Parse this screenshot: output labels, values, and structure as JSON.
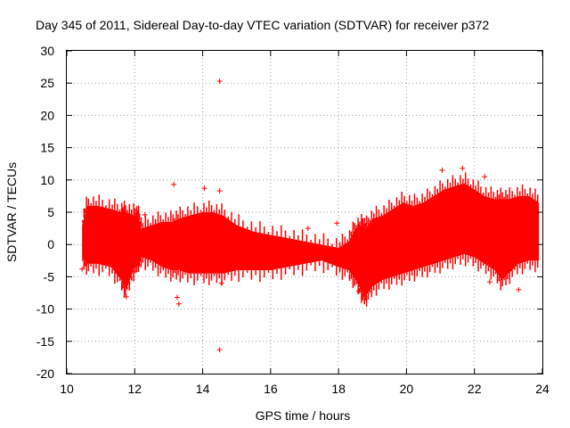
{
  "chart_data": {
    "type": "scatter",
    "title": "Day 345 of 2011, Sidereal Day-to-day VTEC variation (SDTVAR) for receiver p372",
    "xlabel": "GPS time / hours",
    "ylabel": "SDTVAR / TECUs",
    "xlim": [
      10,
      24
    ],
    "ylim": [
      -20,
      30
    ],
    "xticks": [
      "10",
      "12",
      "14",
      "16",
      "18",
      "20",
      "22",
      "24"
    ],
    "yticks": [
      "-20",
      "-15",
      "-10",
      "-5",
      "0",
      "5",
      "10",
      "15",
      "20",
      "25",
      "30"
    ],
    "grid": true,
    "marker": "+",
    "color": "#ff0000",
    "envelope": {
      "x": [
        10.45,
        10.6,
        10.9,
        11.3,
        11.6,
        11.75,
        12.0,
        12.1,
        12.2,
        12.5,
        12.8,
        13.1,
        13.3,
        13.6,
        14.0,
        14.3,
        14.6,
        15.0,
        15.5,
        16.0,
        16.5,
        17.0,
        17.5,
        18.0,
        18.3,
        18.5,
        18.7,
        18.8,
        19.0,
        19.3,
        19.6,
        19.9,
        20.2,
        20.5,
        20.8,
        21.1,
        21.4,
        21.7,
        22.0,
        22.3,
        22.6,
        22.8,
        23.0,
        23.3,
        23.6,
        23.9
      ],
      "upper": [
        3.0,
        6.0,
        6.0,
        5.5,
        5.0,
        5.0,
        4.5,
        4.5,
        2.5,
        3.0,
        3.5,
        3.5,
        4.0,
        4.5,
        5.0,
        5.0,
        4.5,
        3.0,
        2.0,
        1.5,
        1.0,
        0.5,
        0.0,
        -0.5,
        0.5,
        2.5,
        3.0,
        2.5,
        4.0,
        4.5,
        5.5,
        6.5,
        6.0,
        6.5,
        7.5,
        8.5,
        9.0,
        9.5,
        8.5,
        7.5,
        7.0,
        7.0,
        7.0,
        7.5,
        7.5,
        6.5
      ],
      "lower": [
        -2.0,
        -3.0,
        -3.0,
        -3.5,
        -5.5,
        -7.0,
        -3.5,
        -2.5,
        -2.0,
        -2.5,
        -3.5,
        -4.0,
        -4.0,
        -4.5,
        -4.5,
        -4.5,
        -4.5,
        -4.0,
        -4.0,
        -4.0,
        -3.5,
        -3.0,
        -2.5,
        -3.5,
        -4.0,
        -5.5,
        -7.5,
        -8.0,
        -6.5,
        -5.5,
        -5.0,
        -4.5,
        -4.0,
        -3.5,
        -3.0,
        -2.5,
        -2.0,
        -1.5,
        -2.0,
        -3.0,
        -4.0,
        -5.5,
        -4.5,
        -3.0,
        -2.5,
        -2.5
      ]
    },
    "outliers": [
      {
        "x": 14.5,
        "y": 25.3
      },
      {
        "x": 14.5,
        "y": -16.3
      },
      {
        "x": 13.15,
        "y": 9.3
      },
      {
        "x": 13.3,
        "y": -9.2
      },
      {
        "x": 13.25,
        "y": -8.2
      },
      {
        "x": 14.05,
        "y": 8.7
      },
      {
        "x": 14.5,
        "y": 8.3
      },
      {
        "x": 14.55,
        "y": -6.0
      },
      {
        "x": 11.75,
        "y": -8.1
      },
      {
        "x": 12.3,
        "y": 4.6
      },
      {
        "x": 17.1,
        "y": 2.5
      },
      {
        "x": 17.95,
        "y": 3.3
      },
      {
        "x": 18.6,
        "y": 2.8
      },
      {
        "x": 21.05,
        "y": 11.5
      },
      {
        "x": 21.65,
        "y": 11.8
      },
      {
        "x": 22.3,
        "y": 10.5
      },
      {
        "x": 22.45,
        "y": -5.8
      },
      {
        "x": 10.45,
        "y": -3.8
      },
      {
        "x": 23.3,
        "y": -7.0
      },
      {
        "x": 18.6,
        "y": -7.2
      }
    ]
  }
}
